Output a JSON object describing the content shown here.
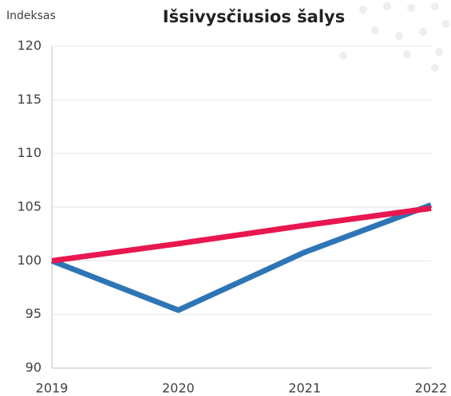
{
  "chart_data": {
    "type": "line",
    "title": "Išsivysčiusios šalys",
    "y_label": "Indeksas",
    "categories": [
      "2019",
      "2020",
      "2021",
      "2022"
    ],
    "series": [
      {
        "color": "#2e75b6",
        "values": [
          100,
          95.4,
          100.8,
          105.2
        ]
      },
      {
        "color": "#e8174f",
        "values": [
          100,
          101.6,
          103.3,
          104.9
        ]
      }
    ],
    "ylim": [
      90,
      120
    ],
    "yticks": [
      90,
      95,
      100,
      105,
      110,
      115,
      120
    ],
    "grid": true
  }
}
